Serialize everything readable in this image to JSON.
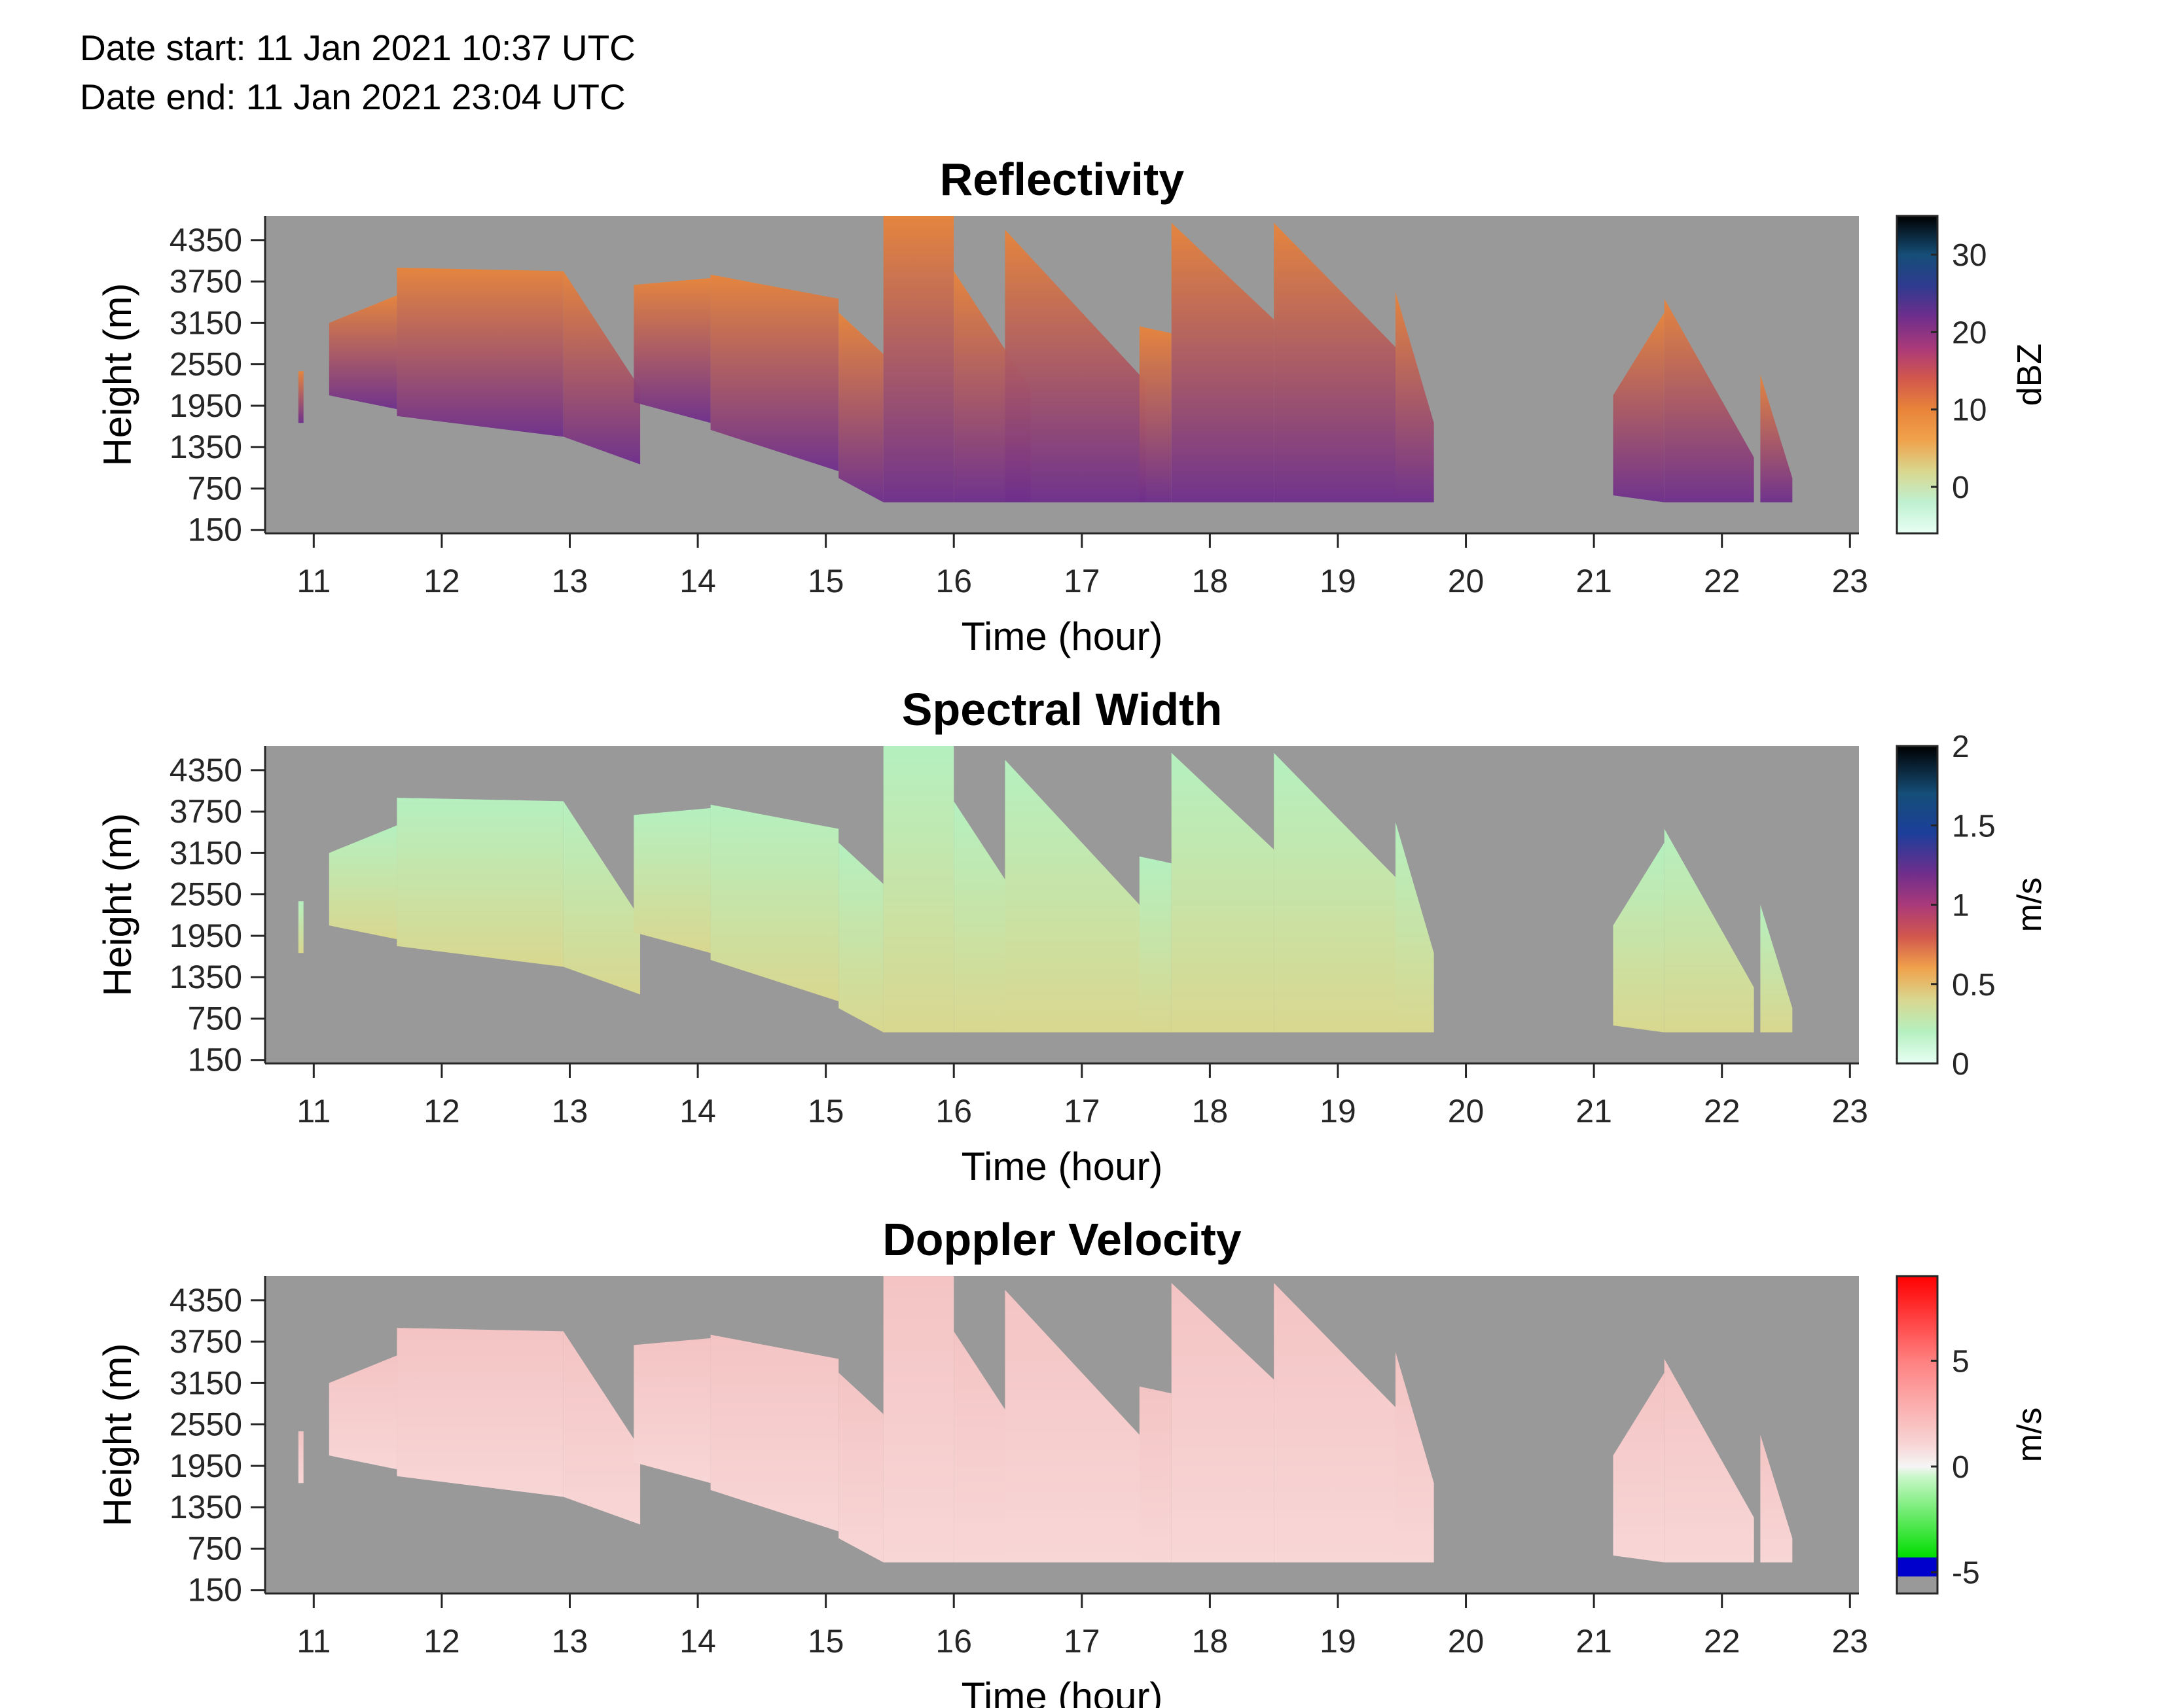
{
  "header": {
    "date_start": "Date start: 11 Jan 2021 10:37 UTC",
    "date_end": "Date end:  11 Jan 2021 23:04 UTC"
  },
  "colors": {
    "background_no_data": "#999999",
    "reflectivity_low": "#e8fff4",
    "reflectivity_mid": "#e8843a",
    "reflectivity_high": "#6e2e8c",
    "spectral_width": "#b5f0c0",
    "doppler_velocity": "#f4c4c4"
  },
  "chart_data": [
    {
      "type": "heatmap",
      "title": "Reflectivity",
      "xlabel": "Time (hour)",
      "ylabel": "Height (m)",
      "x_ticks": [
        "11",
        "12",
        "13",
        "14",
        "15",
        "16",
        "17",
        "18",
        "19",
        "20",
        "21",
        "22",
        "23"
      ],
      "y_ticks": [
        "150",
        "750",
        "1350",
        "1950",
        "2550",
        "3150",
        "3750",
        "4350"
      ],
      "xlim": [
        10.62,
        23.07
      ],
      "ylim": [
        100,
        4700
      ],
      "colorbar": {
        "label": "dBZ",
        "ticks": [
          "0",
          "10",
          "20",
          "30"
        ],
        "range": [
          -6,
          35
        ],
        "stops": [
          {
            "v": -6,
            "c": "#e8fff4"
          },
          {
            "v": -2,
            "c": "#bff0d0"
          },
          {
            "v": 2,
            "c": "#d9d78f"
          },
          {
            "v": 6,
            "c": "#f0a24c"
          },
          {
            "v": 10,
            "c": "#e8843a"
          },
          {
            "v": 14,
            "c": "#d2574d"
          },
          {
            "v": 18,
            "c": "#a9397a"
          },
          {
            "v": 22,
            "c": "#6e2e8c"
          },
          {
            "v": 26,
            "c": "#2e3b8f"
          },
          {
            "v": 30,
            "c": "#154e78"
          },
          {
            "v": 35,
            "c": "#000000"
          }
        ]
      }
    },
    {
      "type": "heatmap",
      "title": "Spectral Width",
      "xlabel": "Time (hour)",
      "ylabel": "Height (m)",
      "x_ticks": [
        "11",
        "12",
        "13",
        "14",
        "15",
        "16",
        "17",
        "18",
        "19",
        "20",
        "21",
        "22",
        "23"
      ],
      "y_ticks": [
        "150",
        "750",
        "1350",
        "1950",
        "2550",
        "3150",
        "3750",
        "4350"
      ],
      "xlim": [
        10.62,
        23.07
      ],
      "ylim": [
        100,
        4700
      ],
      "colorbar": {
        "label": "m/s",
        "ticks": [
          "0",
          "0.5",
          "1",
          "1.5",
          "2"
        ],
        "range": [
          0,
          2
        ],
        "stops": [
          {
            "v": 0,
            "c": "#e8fff4"
          },
          {
            "v": 0.2,
            "c": "#b5f0c0"
          },
          {
            "v": 0.4,
            "c": "#d9d78f"
          },
          {
            "v": 0.6,
            "c": "#f0a24c"
          },
          {
            "v": 0.8,
            "c": "#d2574d"
          },
          {
            "v": 1.0,
            "c": "#a9397a"
          },
          {
            "v": 1.2,
            "c": "#6e2e8c"
          },
          {
            "v": 1.45,
            "c": "#1c3f9a"
          },
          {
            "v": 1.7,
            "c": "#154e78"
          },
          {
            "v": 2.0,
            "c": "#000000"
          }
        ]
      }
    },
    {
      "type": "heatmap",
      "title": "Doppler Velocity",
      "xlabel": "Time (hour)",
      "ylabel": "Height (m)",
      "x_ticks": [
        "11",
        "12",
        "13",
        "14",
        "15",
        "16",
        "17",
        "18",
        "19",
        "20",
        "21",
        "22",
        "23"
      ],
      "y_ticks": [
        "150",
        "750",
        "1350",
        "1950",
        "2550",
        "3150",
        "3750",
        "4350"
      ],
      "xlim": [
        10.62,
        23.07
      ],
      "ylim": [
        100,
        4700
      ],
      "colorbar": {
        "label": "m/s",
        "ticks": [
          "-5",
          "0",
          "5"
        ],
        "range": [
          -6,
          9
        ],
        "stops": [
          {
            "v": -6,
            "c": "#999999"
          },
          {
            "v": -5.2,
            "c": "#999999"
          },
          {
            "v": -5.19,
            "c": "#0000cc"
          },
          {
            "v": -4.3,
            "c": "#0000cc"
          },
          {
            "v": -4.29,
            "c": "#00dd00"
          },
          {
            "v": -0.5,
            "c": "#c8f7c8"
          },
          {
            "v": 0,
            "c": "#f5f5f5"
          },
          {
            "v": 1,
            "c": "#f8d6d6"
          },
          {
            "v": 5,
            "c": "#ff8080"
          },
          {
            "v": 9,
            "c": "#ff0000"
          }
        ]
      }
    }
  ]
}
